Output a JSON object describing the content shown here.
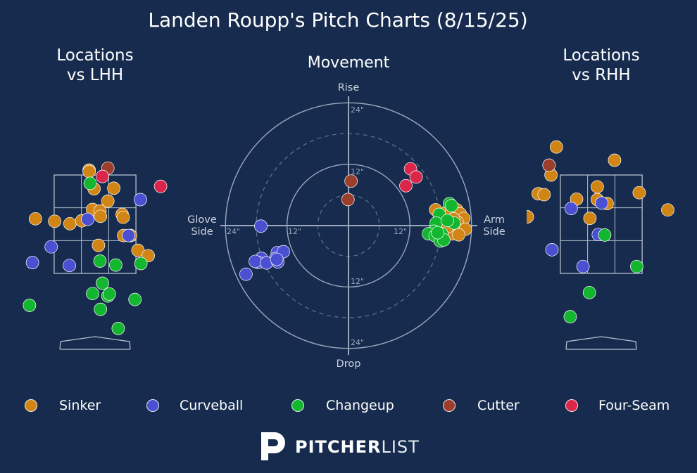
{
  "page": {
    "title": "Landen Roupp's Pitch Charts (8/15/25)"
  },
  "colors": {
    "background": "#162b4d",
    "Sinker": "#d08514",
    "Curveball": "#4b4fd2",
    "Changeup": "#13b62f",
    "Cutter": "#9b3e2c",
    "Four-Seam": "#d9264a"
  },
  "legend": [
    {
      "name": "Sinker",
      "color": "#d08514"
    },
    {
      "name": "Curveball",
      "color": "#4b4fd2"
    },
    {
      "name": "Changeup",
      "color": "#13b62f"
    },
    {
      "name": "Cutter",
      "color": "#9b3e2c"
    },
    {
      "name": "Four-Seam",
      "color": "#d9264a"
    }
  ],
  "brand": {
    "bold": "PITCHER",
    "light": "LIST"
  },
  "chart_data": [
    {
      "type": "scatter",
      "title": "Locations\nvs LHH",
      "xlabel": "",
      "ylabel": "",
      "xlim": [
        -2.2,
        2.2
      ],
      "ylim": [
        -0.6,
        5.5
      ],
      "grid": false,
      "strike_zone": {
        "x": [
          -0.83,
          0.83
        ],
        "z": [
          1.5,
          3.5
        ]
      },
      "series": [
        {
          "name": "Sinker",
          "points": [
            [
              -0.12,
              3.6
            ],
            [
              -0.02,
              3.22
            ],
            [
              -0.12,
              3.57
            ],
            [
              0.38,
              3.23
            ],
            [
              0.26,
              2.97
            ],
            [
              -1.21,
              2.61
            ],
            [
              -0.82,
              2.56
            ],
            [
              -0.51,
              2.51
            ],
            [
              -0.27,
              2.57
            ],
            [
              -0.05,
              2.8
            ],
            [
              0.1,
              2.77
            ],
            [
              0.11,
              2.66
            ],
            [
              0.55,
              2.7
            ],
            [
              0.57,
              2.64
            ],
            [
              0.58,
              2.27
            ],
            [
              0.72,
              2.27
            ],
            [
              0.07,
              2.07
            ],
            [
              0.87,
              1.97
            ],
            [
              1.08,
              1.86
            ]
          ]
        },
        {
          "name": "Curveball",
          "points": [
            [
              0.92,
              3.0
            ],
            [
              -0.15,
              2.6
            ],
            [
              0.68,
              2.27
            ],
            [
              -0.89,
              2.04
            ],
            [
              -1.27,
              1.72
            ],
            [
              -0.52,
              1.66
            ]
          ]
        },
        {
          "name": "Changeup",
          "points": [
            [
              -0.1,
              3.33
            ],
            [
              0.1,
              1.75
            ],
            [
              0.42,
              1.67
            ],
            [
              0.93,
              1.7
            ],
            [
              0.15,
              1.3
            ],
            [
              -0.05,
              1.09
            ],
            [
              0.26,
              1.04
            ],
            [
              0.29,
              1.08
            ],
            [
              0.81,
              0.97
            ],
            [
              -1.33,
              0.85
            ],
            [
              0.11,
              0.77
            ],
            [
              0.47,
              0.38
            ]
          ]
        },
        {
          "name": "Cutter",
          "points": [
            [
              0.26,
              3.64
            ]
          ]
        },
        {
          "name": "Four-Seam",
          "points": [
            [
              0.15,
              3.47
            ],
            [
              1.33,
              3.27
            ]
          ]
        }
      ]
    },
    {
      "type": "scatter",
      "title": "Movement",
      "xlabel": "",
      "ylabel": "",
      "units": "inches",
      "xlim": [
        -30,
        30
      ],
      "ylim": [
        -30,
        30
      ],
      "axis_labels": {
        "top": "Rise",
        "bottom": "Drop",
        "left": "Glove\nSide",
        "right": "Arm\nSide"
      },
      "rings": [
        6,
        12,
        18,
        24
      ],
      "ring_labels": [
        "12\"",
        "24\"",
        "12\"",
        "24\"",
        "12\"",
        "24\"",
        "12\"",
        "24\""
      ],
      "series": [
        {
          "name": "Sinker",
          "points": [
            [
              17.0,
              3.1
            ],
            [
              18.4,
              1.8
            ],
            [
              17.8,
              0.3
            ],
            [
              19.2,
              2.7
            ],
            [
              20.0,
              2.4
            ],
            [
              21.1,
              3.1
            ],
            [
              21.8,
              2.3
            ],
            [
              22.5,
              1.4
            ],
            [
              21.2,
              0.7
            ],
            [
              20.5,
              1.3
            ],
            [
              19.8,
              0.2
            ],
            [
              20.9,
              -0.4
            ],
            [
              22.8,
              -0.7
            ],
            [
              19.0,
              -0.5
            ],
            [
              18.8,
              -1.2
            ],
            [
              20.3,
              -1.6
            ],
            [
              21.5,
              -1.8
            ],
            [
              17.3,
              -0.5
            ],
            [
              18.2,
              0.5
            ],
            [
              19.4,
              -0.2
            ]
          ]
        },
        {
          "name": "Curveball",
          "points": [
            [
              -17.1,
              -0.1
            ],
            [
              -13.9,
              -5.3
            ],
            [
              -14.2,
              -6.4
            ],
            [
              -12.7,
              -5.1
            ],
            [
              -17.0,
              -6.4
            ],
            [
              -17.6,
              -7.2
            ],
            [
              -18.2,
              -7.0
            ],
            [
              -16.0,
              -7.3
            ],
            [
              -13.8,
              -7.1
            ],
            [
              -14.0,
              -6.6
            ],
            [
              -20.0,
              -9.5
            ]
          ]
        },
        {
          "name": "Changeup",
          "points": [
            [
              17.7,
              2.2
            ],
            [
              17.1,
              0.5
            ],
            [
              20.6,
              0.5
            ],
            [
              19.3,
              1.0
            ],
            [
              16.7,
              -1.1
            ],
            [
              18.2,
              -1.6
            ],
            [
              15.6,
              -1.6
            ],
            [
              16.9,
              -2.0
            ],
            [
              17.9,
              -3.0
            ],
            [
              18.6,
              -2.8
            ],
            [
              19.7,
              4.3
            ],
            [
              20.1,
              3.9
            ],
            [
              17.4,
              -1.4
            ]
          ]
        },
        {
          "name": "Cutter",
          "points": [
            [
              0.5,
              8.7
            ],
            [
              -0.1,
              5.1
            ]
          ]
        },
        {
          "name": "Four-Seam",
          "points": [
            [
              12.1,
              11.1
            ],
            [
              13.2,
              9.5
            ],
            [
              11.2,
              7.8
            ]
          ]
        }
      ]
    },
    {
      "type": "scatter",
      "title": "Locations\nvs RHH",
      "xlabel": "",
      "ylabel": "",
      "xlim": [
        -2.2,
        2.2
      ],
      "ylim": [
        -0.6,
        5.5
      ],
      "grid": false,
      "strike_zone": {
        "x": [
          -0.83,
          0.83
        ],
        "z": [
          1.5,
          3.5
        ]
      },
      "series": [
        {
          "name": "Sinker",
          "points": [
            [
              -0.91,
              4.07
            ],
            [
              0.27,
              3.8
            ],
            [
              -1.02,
              3.5
            ],
            [
              -1.28,
              3.12
            ],
            [
              -1.16,
              3.1
            ],
            [
              -0.5,
              3.01
            ],
            [
              -0.08,
              3.26
            ],
            [
              -0.08,
              3.0
            ],
            [
              0.12,
              2.92
            ],
            [
              0.77,
              3.14
            ],
            [
              1.35,
              2.79
            ],
            [
              -0.23,
              2.62
            ],
            [
              -1.5,
              2.65
            ]
          ]
        },
        {
          "name": "Curveball",
          "points": [
            [
              -0.61,
              2.82
            ],
            [
              0.01,
              2.93
            ],
            [
              -0.06,
              2.29
            ],
            [
              -1.0,
              1.98
            ],
            [
              -0.37,
              1.64
            ]
          ]
        },
        {
          "name": "Changeup",
          "points": [
            [
              0.07,
              2.28
            ],
            [
              0.72,
              1.64
            ],
            [
              -0.24,
              1.11
            ],
            [
              -0.63,
              0.62
            ]
          ]
        },
        {
          "name": "Cutter",
          "points": [
            [
              -1.06,
              3.7
            ]
          ]
        },
        {
          "name": "Four-Seam",
          "points": []
        }
      ]
    }
  ]
}
